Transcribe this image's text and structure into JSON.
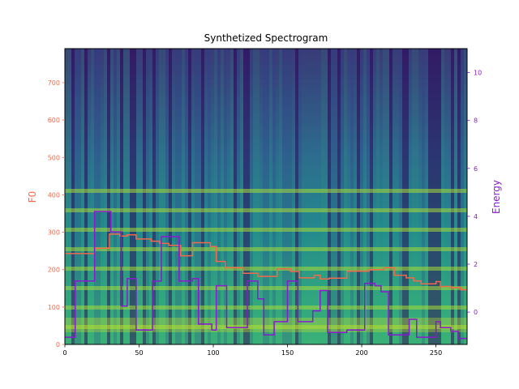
{
  "chart_data": {
    "type": "line",
    "title": "Synthetized Spectrogram",
    "background": "spectrogram-heatmap",
    "xlim": [
      0,
      271
    ],
    "x_ticks": [
      0,
      50,
      100,
      150,
      200,
      250
    ],
    "left_axis": {
      "label": "F0",
      "color": "#f4694a",
      "ylim": [
        0,
        791
      ],
      "ticks": [
        0,
        100,
        200,
        300,
        400,
        500,
        600,
        700
      ]
    },
    "right_axis": {
      "label": "Energy",
      "color": "#8a1ad0",
      "ylim": [
        -1.35,
        11.0
      ],
      "ticks": [
        0,
        2,
        4,
        6,
        8,
        10
      ]
    },
    "series": [
      {
        "axis": "left",
        "color": "#f4694a",
        "points": [
          [
            0,
            243
          ],
          [
            20,
            243
          ],
          [
            20,
            257
          ],
          [
            30,
            257
          ],
          [
            30,
            295
          ],
          [
            37,
            295
          ],
          [
            37,
            290
          ],
          [
            42,
            290
          ],
          [
            42,
            293
          ],
          [
            48,
            293
          ],
          [
            48,
            282
          ],
          [
            58,
            282
          ],
          [
            58,
            276
          ],
          [
            64,
            276
          ],
          [
            64,
            270
          ],
          [
            70,
            270
          ],
          [
            70,
            265
          ],
          [
            78,
            265
          ],
          [
            78,
            237
          ],
          [
            86,
            237
          ],
          [
            86,
            272
          ],
          [
            98,
            272
          ],
          [
            98,
            262
          ],
          [
            102,
            262
          ],
          [
            102,
            222
          ],
          [
            108,
            222
          ],
          [
            108,
            205
          ],
          [
            120,
            205
          ],
          [
            120,
            190
          ],
          [
            130,
            190
          ],
          [
            130,
            182
          ],
          [
            143,
            182
          ],
          [
            143,
            202
          ],
          [
            152,
            202
          ],
          [
            152,
            195
          ],
          [
            158,
            195
          ],
          [
            158,
            178
          ],
          [
            168,
            178
          ],
          [
            168,
            185
          ],
          [
            172,
            185
          ],
          [
            172,
            175
          ],
          [
            178,
            175
          ],
          [
            178,
            177
          ],
          [
            190,
            177
          ],
          [
            190,
            196
          ],
          [
            205,
            196
          ],
          [
            205,
            200
          ],
          [
            215,
            200
          ],
          [
            215,
            205
          ],
          [
            222,
            205
          ],
          [
            222,
            185
          ],
          [
            230,
            185
          ],
          [
            230,
            178
          ],
          [
            235,
            178
          ],
          [
            235,
            170
          ],
          [
            240,
            170
          ],
          [
            240,
            162
          ],
          [
            250,
            162
          ],
          [
            250,
            168
          ],
          [
            253,
            168
          ],
          [
            253,
            155
          ],
          [
            260,
            155
          ],
          [
            260,
            152
          ],
          [
            267,
            152
          ],
          [
            267,
            146
          ],
          [
            271,
            146
          ]
        ]
      },
      {
        "axis": "right",
        "color": "#8a1ad0",
        "points": [
          [
            0,
            -1.05
          ],
          [
            7,
            -1.05
          ],
          [
            7,
            1.3
          ],
          [
            20,
            1.3
          ],
          [
            20,
            4.2
          ],
          [
            31,
            4.2
          ],
          [
            31,
            3.35
          ],
          [
            38,
            3.35
          ],
          [
            38,
            0.25
          ],
          [
            42,
            0.25
          ],
          [
            42,
            1.4
          ],
          [
            48,
            1.4
          ],
          [
            48,
            -0.75
          ],
          [
            59,
            -0.75
          ],
          [
            59,
            1.3
          ],
          [
            65,
            1.3
          ],
          [
            65,
            3.15
          ],
          [
            77,
            3.15
          ],
          [
            77,
            1.3
          ],
          [
            86,
            1.3
          ],
          [
            86,
            1.4
          ],
          [
            90,
            1.4
          ],
          [
            90,
            -0.5
          ],
          [
            99,
            -0.5
          ],
          [
            99,
            -0.75
          ],
          [
            102,
            -0.75
          ],
          [
            102,
            1.1
          ],
          [
            109,
            1.1
          ],
          [
            109,
            -0.65
          ],
          [
            123,
            -0.65
          ],
          [
            123,
            1.3
          ],
          [
            130,
            1.3
          ],
          [
            130,
            0.55
          ],
          [
            134,
            0.55
          ],
          [
            134,
            -0.95
          ],
          [
            141,
            -0.95
          ],
          [
            141,
            -0.4
          ],
          [
            150,
            -0.4
          ],
          [
            150,
            1.3
          ],
          [
            157,
            1.3
          ],
          [
            157,
            -0.4
          ],
          [
            167,
            -0.4
          ],
          [
            167,
            0.05
          ],
          [
            172,
            0.05
          ],
          [
            172,
            0.9
          ],
          [
            177,
            0.9
          ],
          [
            177,
            -0.85
          ],
          [
            190,
            -0.85
          ],
          [
            190,
            -0.75
          ],
          [
            202,
            -0.75
          ],
          [
            202,
            1.2
          ],
          [
            209,
            1.2
          ],
          [
            209,
            1.1
          ],
          [
            213,
            1.1
          ],
          [
            213,
            0.85
          ],
          [
            218,
            0.85
          ],
          [
            218,
            -0.95
          ],
          [
            232,
            -0.95
          ],
          [
            232,
            -0.3
          ],
          [
            237,
            -0.3
          ],
          [
            237,
            -1.05
          ],
          [
            250,
            -1.05
          ],
          [
            250,
            -0.4
          ],
          [
            253,
            -0.4
          ],
          [
            253,
            -0.65
          ],
          [
            260,
            -0.65
          ],
          [
            260,
            -0.8
          ],
          [
            265,
            -0.8
          ],
          [
            265,
            -1.1
          ],
          [
            271,
            -1.1
          ]
        ]
      }
    ]
  }
}
